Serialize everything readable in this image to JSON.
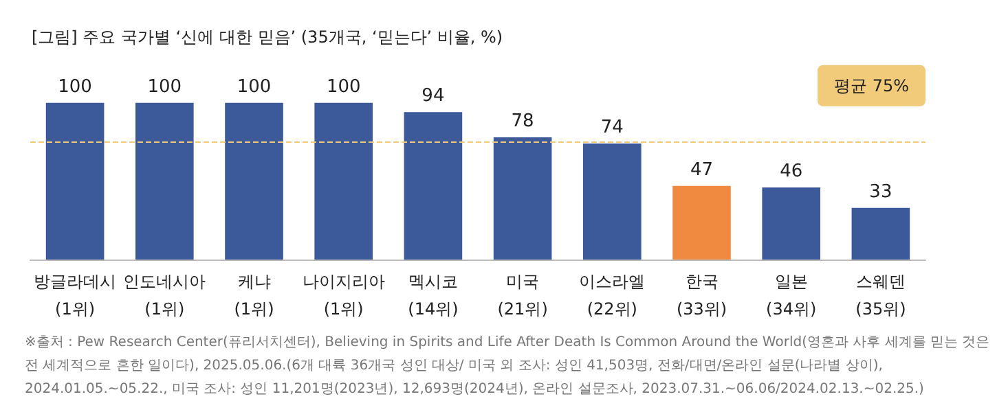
{
  "chart_data": {
    "type": "bar",
    "title": "[그림] 주요 국가별 ‘신에 대한 믿음’ (35개국, ‘믿는다’ 비율, %)",
    "categories": [
      "방글라데시\n(1위)",
      "인도네시아\n(1위)",
      "케냐\n(1위)",
      "나이지리아\n(1위)",
      "멕시코\n(14위)",
      "미국\n(21위)",
      "이스라엘\n(22위)",
      "한국\n(33위)",
      "일본\n(34위)",
      "스웨덴\n(35위)"
    ],
    "values": [
      100,
      100,
      100,
      100,
      94,
      78,
      74,
      47,
      46,
      33
    ],
    "colors": [
      "#3c5a9a",
      "#3c5a9a",
      "#3c5a9a",
      "#3c5a9a",
      "#3c5a9a",
      "#3c5a9a",
      "#3c5a9a",
      "#f08a40",
      "#3c5a9a",
      "#3c5a9a"
    ],
    "data_labels": true,
    "ref_lines": [
      {
        "axis": "y",
        "value": 75,
        "label": "평균 75%",
        "color": "#f2cb7a",
        "line_style": "dashed"
      }
    ],
    "annotations": [
      "※출처 : Pew Research Center(퓨리서치센터), Believing in Spirits and Life After Death Is Common Around the World(영혼과 사후 세계를 믿는 것은 전 세계적으로 흔한 일이다), 2025.05.06.(6개 대륙 36개국 성인 대상/ 미국 외 조사: 성인 41,503명, 전화/대면/온라인 설문(나라별 상이), 2024.01.05.~05.22., 미국 조사: 성인 11,201명(2023년), 12,693명(2024년), 온라인 설문조사, 2023.07.31.~06.06/2024.02.13.~02.25.)"
    ]
  }
}
